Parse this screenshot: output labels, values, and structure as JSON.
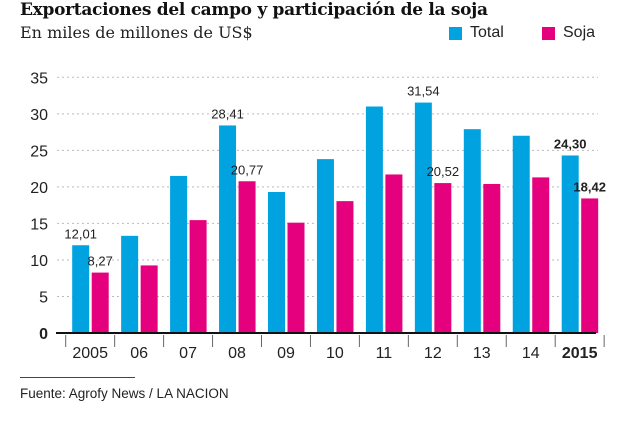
{
  "chart_data": {
    "type": "bar",
    "title": "Exportaciones del campo y participación de la soja",
    "subtitle": "En miles de millones de US$",
    "xlabel": "",
    "ylabel": "",
    "ylim": [
      0,
      35
    ],
    "yticks": [
      "0",
      "5",
      "10",
      "15",
      "20",
      "25",
      "30",
      "35"
    ],
    "grid": true,
    "legend_position": "top-right",
    "categories": [
      "2005",
      "06",
      "07",
      "08",
      "09",
      "10",
      "11",
      "12",
      "13",
      "14",
      "2015"
    ],
    "series": [
      {
        "name": "Total",
        "color": "#00a3e0",
        "values": [
          12.01,
          13.3,
          21.5,
          28.41,
          19.3,
          23.8,
          31.0,
          31.54,
          27.9,
          27.0,
          24.3
        ],
        "labels": [
          "12,01",
          "",
          "",
          "28,41",
          "",
          "",
          "",
          "31,54",
          "",
          "",
          "24,30"
        ]
      },
      {
        "name": "Soja",
        "color": "#e5007e",
        "values": [
          8.27,
          9.25,
          15.45,
          20.77,
          15.1,
          18.05,
          21.7,
          20.52,
          20.4,
          21.3,
          18.42
        ],
        "labels": [
          "8,27",
          "",
          "",
          "20,77",
          "",
          "",
          "",
          "20,52",
          "",
          "",
          "18,42"
        ]
      }
    ]
  },
  "source": "Fuente: Agrofy News / LA NACION"
}
